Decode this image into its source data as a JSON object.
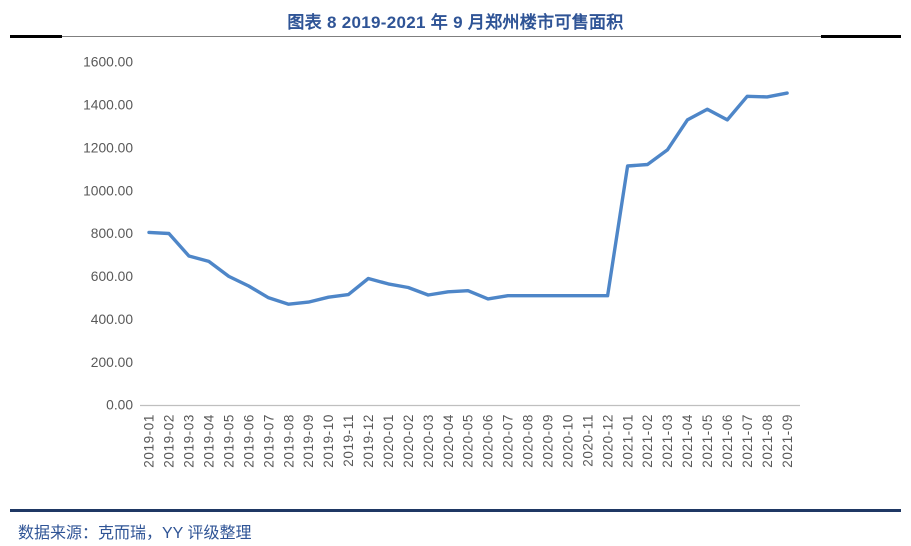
{
  "title": "图表 8 2019-2021 年 9 月郑州楼市可售面积",
  "footer": {
    "source_label": "数据来源：克而瑞，YY 评级整理"
  },
  "colors": {
    "title_text": "#2F5496",
    "footer_text": "#2F5496",
    "top_rule_thin": "#7F7F7F",
    "top_rule_caps": "#000000",
    "bottom_rule": "#1F3864",
    "series_line": "#4E86C8",
    "axis_line": "#BFBFBF",
    "tick_text": "#595959"
  },
  "chart_data": {
    "type": "line",
    "title": "图表 8 2019-2021 年 9 月郑州楼市可售面积",
    "xlabel": "",
    "ylabel": "",
    "ylim": [
      0,
      1600
    ],
    "ytick_step": 200,
    "ytick_decimals": 2,
    "grid": false,
    "legend": "none",
    "x_tick_rotation_deg": 90,
    "categories": [
      "2019-01",
      "2019-02",
      "2019-03",
      "2019-04",
      "2019-05",
      "2019-06",
      "2019-07",
      "2019-08",
      "2019-09",
      "2019-10",
      "2019-11",
      "2019-12",
      "2020-01",
      "2020-02",
      "2020-03",
      "2020-04",
      "2020-05",
      "2020-06",
      "2020-07",
      "2020-08",
      "2020-09",
      "2020-10",
      "2020-11",
      "2020-12",
      "2021-01",
      "2021-02",
      "2021-03",
      "2021-04",
      "2021-05",
      "2021-06",
      "2021-07",
      "2021-08",
      "2021-09"
    ],
    "values": [
      805,
      800,
      695,
      670,
      600,
      555,
      500,
      470,
      480,
      503,
      515,
      590,
      565,
      548,
      513,
      528,
      533,
      495,
      510,
      510,
      510,
      510,
      510,
      510,
      1115,
      1122,
      1190,
      1330,
      1380,
      1330,
      1440,
      1437,
      1455
    ]
  }
}
